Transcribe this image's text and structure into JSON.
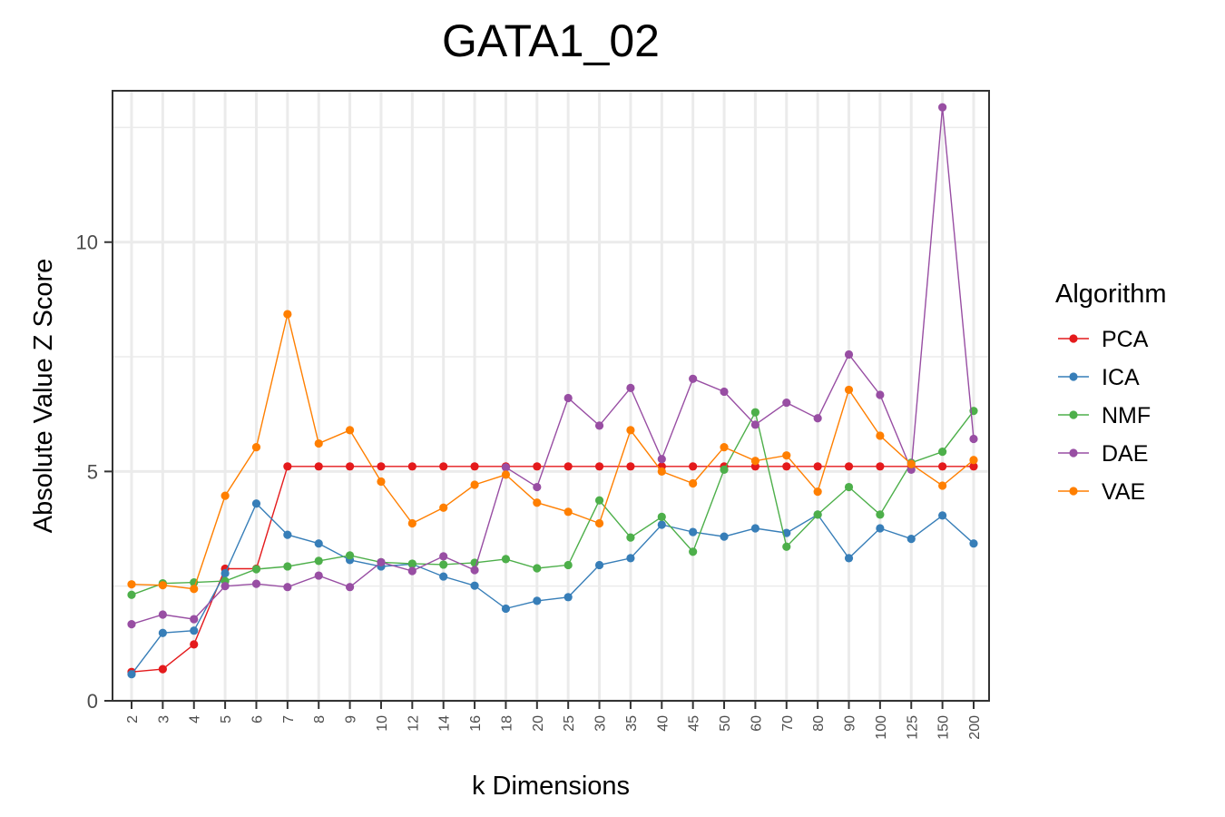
{
  "chart_data": {
    "type": "line",
    "title": "GATA1_02",
    "xlabel": "k Dimensions",
    "ylabel": "Absolute Value Z Score",
    "categories": [
      "2",
      "3",
      "4",
      "5",
      "6",
      "7",
      "8",
      "9",
      "10",
      "12",
      "14",
      "16",
      "18",
      "20",
      "25",
      "30",
      "35",
      "40",
      "45",
      "50",
      "60",
      "70",
      "80",
      "90",
      "100",
      "125",
      "150",
      "200"
    ],
    "ylim": [
      0,
      13.3
    ],
    "yticks": [
      0,
      5,
      10
    ],
    "grid": true,
    "legend": {
      "title": "Algorithm",
      "position": "right"
    },
    "series": [
      {
        "name": "PCA",
        "color": "#E41A1C",
        "values": [
          0.63,
          0.69,
          1.23,
          2.88,
          2.88,
          5.11,
          5.11,
          5.11,
          5.11,
          5.11,
          5.11,
          5.11,
          5.11,
          5.11,
          5.11,
          5.11,
          5.11,
          5.11,
          5.11,
          5.11,
          5.11,
          5.11,
          5.11,
          5.11,
          5.11,
          5.11,
          5.11,
          5.11
        ]
      },
      {
        "name": "ICA",
        "color": "#377EB8",
        "values": [
          0.58,
          1.48,
          1.53,
          2.78,
          4.3,
          3.62,
          3.43,
          3.07,
          2.93,
          2.98,
          2.71,
          2.51,
          2.01,
          2.18,
          2.26,
          2.96,
          3.11,
          3.84,
          3.68,
          3.58,
          3.76,
          3.66,
          4.06,
          3.11,
          3.76,
          3.53,
          4.04,
          3.43
        ]
      },
      {
        "name": "NMF",
        "color": "#4DAF4A",
        "values": [
          2.31,
          2.56,
          2.58,
          2.61,
          2.87,
          2.93,
          3.05,
          3.17,
          3.02,
          2.99,
          2.97,
          3.01,
          3.09,
          2.89,
          2.96,
          4.37,
          3.56,
          4.01,
          3.25,
          5.04,
          6.29,
          3.36,
          4.06,
          4.66,
          4.06,
          5.19,
          5.43,
          6.32
        ]
      },
      {
        "name": "DAE",
        "color": "#984EA3",
        "values": [
          1.67,
          1.88,
          1.78,
          2.5,
          2.55,
          2.48,
          2.73,
          2.48,
          3.02,
          2.83,
          3.15,
          2.85,
          5.09,
          4.66,
          6.6,
          6.0,
          6.82,
          5.27,
          7.02,
          6.74,
          6.02,
          6.5,
          6.16,
          7.55,
          6.67,
          5.04,
          12.94,
          5.71
        ]
      },
      {
        "name": "VAE",
        "color": "#FF7F00",
        "values": [
          2.54,
          2.52,
          2.44,
          4.47,
          5.53,
          8.43,
          5.61,
          5.9,
          4.78,
          3.87,
          4.21,
          4.71,
          4.93,
          4.32,
          4.12,
          3.87,
          5.9,
          5.0,
          4.74,
          5.53,
          5.23,
          5.35,
          4.56,
          6.78,
          5.78,
          5.16,
          4.69,
          5.25
        ]
      }
    ]
  }
}
